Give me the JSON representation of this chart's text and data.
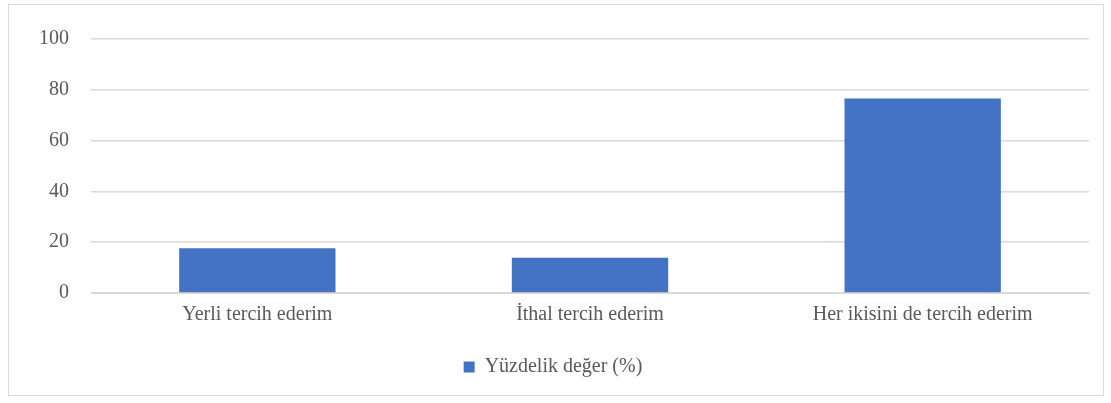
{
  "chart_data": {
    "type": "bar",
    "categories": [
      "Yerli tercih ederim",
      "İthal tercih ederim",
      "Her ikisini de tercih ederim"
    ],
    "series": [
      {
        "name": "Yüzdelik değer (%)",
        "color": "#4472c4",
        "values": [
          17.6,
          13.9,
          76.6
        ]
      }
    ],
    "ylim": [
      0,
      100
    ],
    "yticks": [
      0,
      20,
      40,
      60,
      80,
      100
    ],
    "grid": "y",
    "legend": "bottom"
  }
}
